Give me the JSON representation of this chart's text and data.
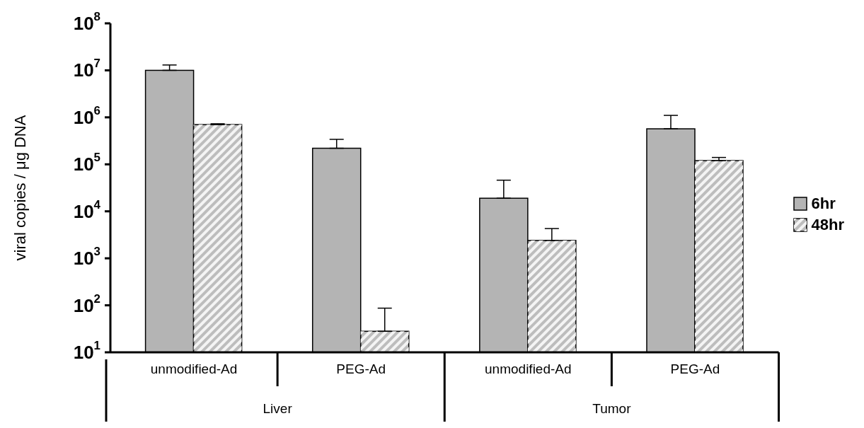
{
  "chart_data": {
    "type": "bar",
    "ylabel": "viral copies / μg DNA",
    "categories": [
      "unmodified-Ad",
      "PEG-Ad",
      "unmodified-Ad",
      "PEG-Ad"
    ],
    "annotations": [
      "Liver",
      "Tumor"
    ],
    "log": true,
    "ylim": [
      10,
      100000000
    ],
    "yticks": [
      {
        "value": 10,
        "label": "10$^{1}$"
      },
      {
        "value": 100,
        "label": "10$^{2}$"
      },
      {
        "value": 1000,
        "label": "10$^{3}$"
      },
      {
        "value": 10000,
        "label": "10$^{4}$"
      },
      {
        "value": 100000,
        "label": "10$^{5}$"
      },
      {
        "value": 1000000,
        "label": "10$^{6}$"
      },
      {
        "value": 10000000,
        "label": "10$^{7}$"
      },
      {
        "value": 100000000,
        "label": "10$^{8}$"
      }
    ],
    "series": [
      {
        "name": "6hr",
        "color": "#b4b4b4",
        "values": [
          10000000,
          220000,
          19000,
          570000
        ],
        "errors": [
          [
            10000000,
            13000000
          ],
          [
            220000,
            340000
          ],
          [
            19000,
            46000
          ],
          [
            570000,
            1100000
          ]
        ]
      },
      {
        "name": "48hr",
        "color": "#bdbdbd",
        "values": [
          700000,
          28,
          2400,
          120000
        ],
        "errors": [
          [
            700000,
            730000
          ],
          [
            28,
            87
          ],
          [
            2400,
            4300
          ],
          [
            120000,
            140000
          ]
        ]
      }
    ],
    "legend": "right",
    "grid": false
  }
}
